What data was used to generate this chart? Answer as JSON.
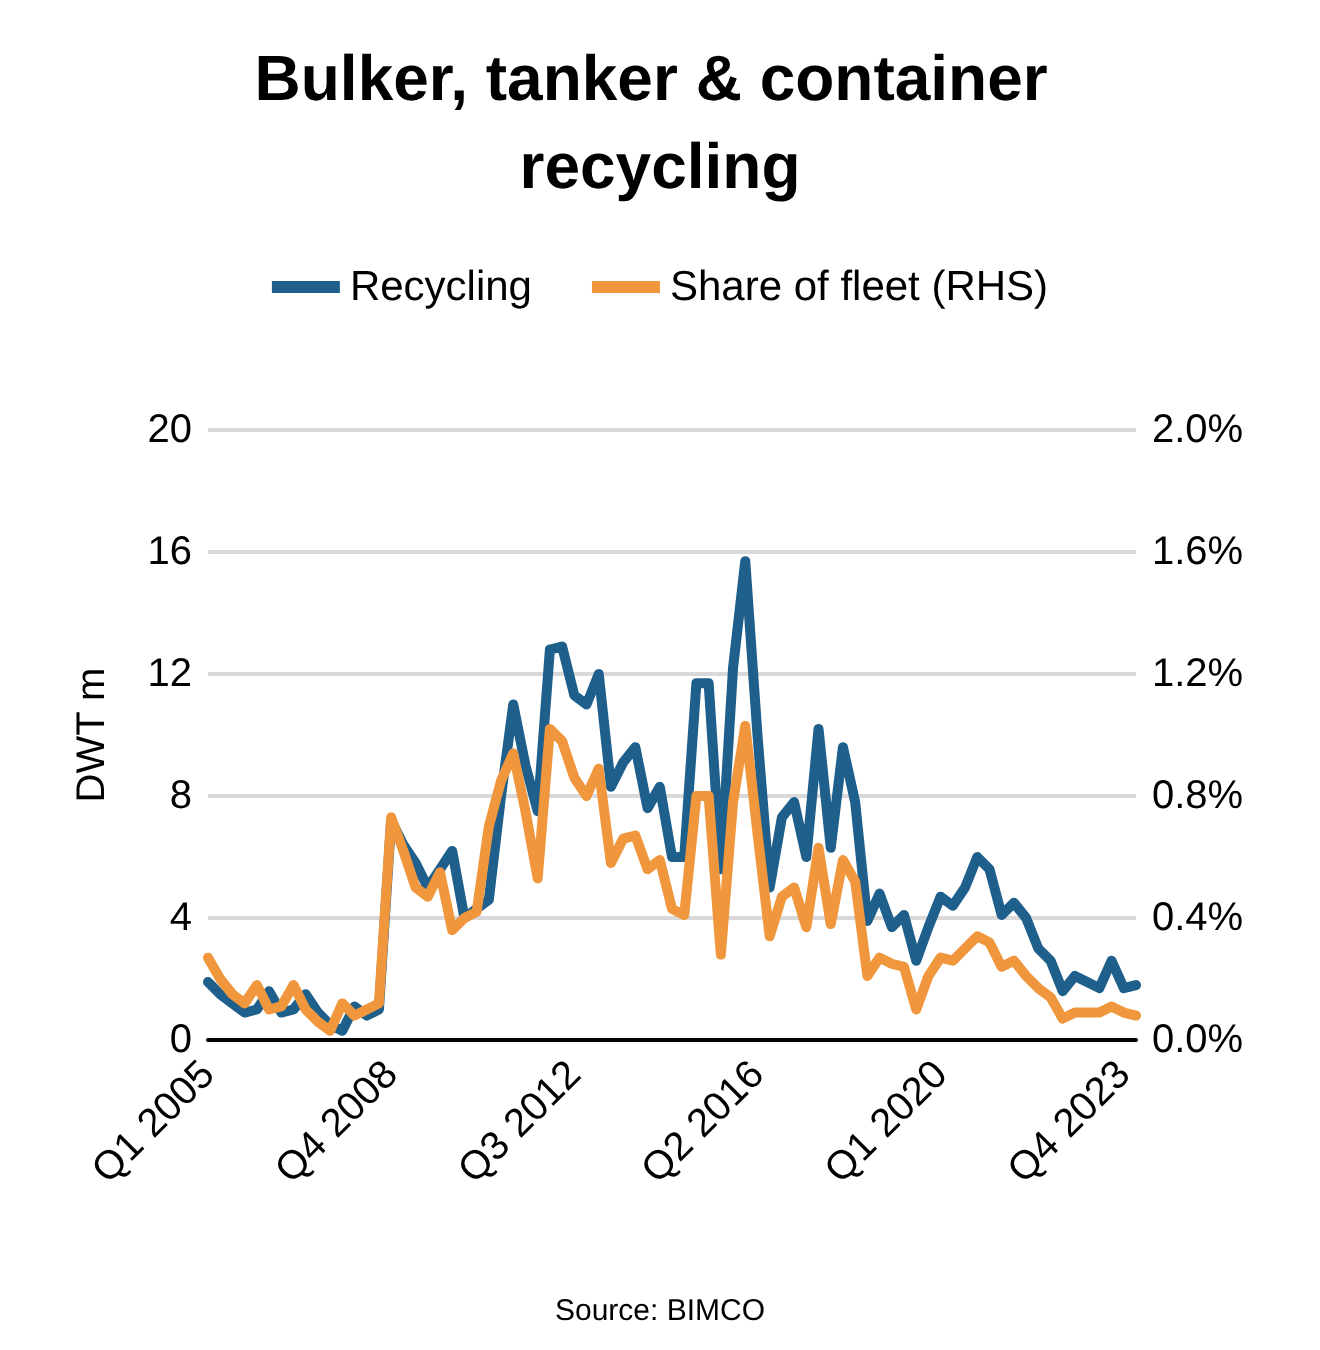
{
  "chart_data": {
    "type": "line",
    "title": "Bulker, tanker & container recycling",
    "ylabel": "DWT m",
    "annotations": [
      "Source: BIMCO"
    ],
    "categories": [
      "Q1 2005",
      null,
      null,
      null,
      null,
      null,
      null,
      null,
      null,
      null,
      null,
      null,
      null,
      null,
      null,
      "Q4 2008",
      null,
      null,
      null,
      null,
      null,
      null,
      null,
      null,
      null,
      null,
      null,
      null,
      null,
      null,
      "Q3 2012",
      null,
      null,
      null,
      null,
      null,
      null,
      null,
      null,
      null,
      null,
      null,
      null,
      null,
      null,
      "Q2 2016",
      null,
      null,
      null,
      null,
      null,
      null,
      null,
      null,
      null,
      null,
      null,
      null,
      null,
      null,
      "Q1 2020",
      null,
      null,
      null,
      null,
      null,
      null,
      null,
      null,
      null,
      null,
      null,
      null,
      null,
      null,
      "Q4 2023",
      null
    ],
    "series": [
      {
        "name": "Recycling",
        "color": "#1f5f8b",
        "values": [
          1.9,
          1.5,
          1.2,
          0.9,
          1.0,
          1.6,
          0.9,
          1.0,
          1.5,
          0.9,
          0.5,
          0.3,
          1.1,
          0.8,
          1.0,
          7.2,
          6.4,
          5.8,
          5.0,
          5.6,
          6.2,
          4.0,
          4.3,
          4.6,
          8.0,
          11.0,
          9.0,
          7.5,
          12.8,
          12.9,
          11.3,
          11.0,
          12.0,
          8.3,
          9.1,
          9.6,
          7.6,
          8.3,
          6.0,
          6.0,
          11.7,
          11.7,
          5.6,
          12.2,
          15.7,
          10.0,
          5.0,
          7.3,
          7.8,
          6.0,
          10.2,
          6.3,
          9.6,
          7.8,
          3.9,
          4.8,
          3.7,
          4.1,
          2.6,
          3.7,
          4.7,
          4.4,
          5.0,
          6.0,
          5.6,
          4.1,
          4.5,
          4.0,
          3.0,
          2.6,
          1.6,
          2.1,
          1.9,
          1.7,
          2.6,
          1.7,
          1.8
        ]
      },
      {
        "name": "Share of fleet (RHS)",
        "color": "#f0963c",
        "axis": "y2",
        "values": [
          0.27,
          0.2,
          0.15,
          0.12,
          0.18,
          0.1,
          0.11,
          0.18,
          0.1,
          0.06,
          0.03,
          0.12,
          0.08,
          0.1,
          0.12,
          0.73,
          0.62,
          0.5,
          0.47,
          0.55,
          0.36,
          0.4,
          0.42,
          0.7,
          0.85,
          0.94,
          0.75,
          0.53,
          1.02,
          0.98,
          0.86,
          0.8,
          0.89,
          0.58,
          0.66,
          0.67,
          0.56,
          0.59,
          0.43,
          0.41,
          0.8,
          0.8,
          0.28,
          0.78,
          1.03,
          0.68,
          0.34,
          0.47,
          0.5,
          0.37,
          0.63,
          0.38,
          0.59,
          0.52,
          0.21,
          0.27,
          0.25,
          0.24,
          0.1,
          0.21,
          0.27,
          0.26,
          0.3,
          0.34,
          0.32,
          0.24,
          0.26,
          0.21,
          0.17,
          0.14,
          0.07,
          0.09,
          0.09,
          0.09,
          0.11,
          0.09,
          0.08
        ]
      }
    ],
    "ylim": [
      0,
      20
    ],
    "yticks": [
      0,
      4,
      8,
      12,
      16,
      20
    ],
    "y2lim": [
      0,
      2
    ],
    "y2ticks": [
      {
        "value": 0,
        "label": "0.0%"
      },
      {
        "value": 0.4,
        "label": "0.4%"
      },
      {
        "value": 0.8,
        "label": "0.8%"
      },
      {
        "value": 1.2,
        "label": "1.2%"
      },
      {
        "value": 1.6,
        "label": "1.6%"
      },
      {
        "value": 2,
        "label": "2.0%"
      }
    ],
    "grid": "y",
    "legend": "top",
    "marker": "none",
    "line_style": "solid"
  }
}
